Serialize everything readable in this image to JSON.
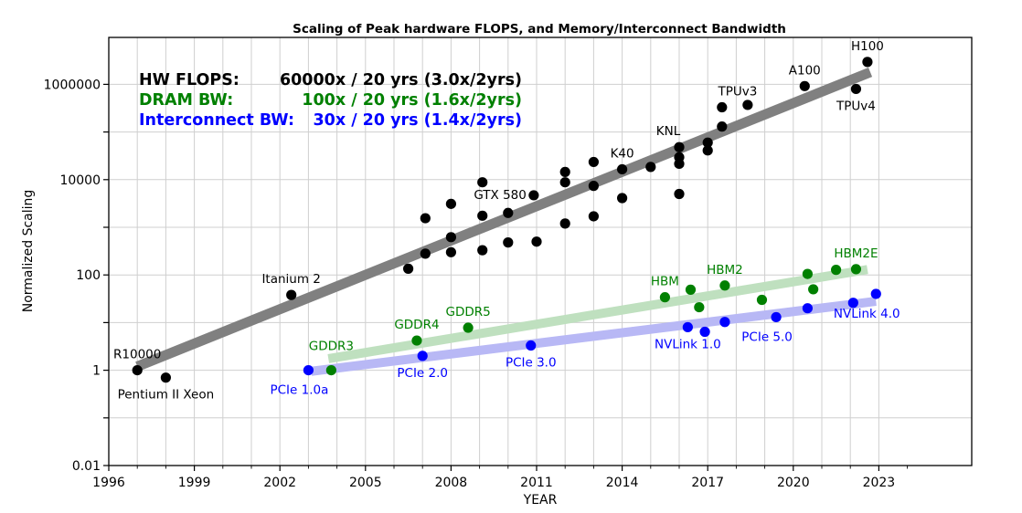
{
  "chart_data": {
    "type": "scatter",
    "title": "Scaling of Peak hardware FLOPS, and Memory/Interconnect Bandwidth",
    "xlabel": "YEAR",
    "ylabel": "Normalized Scaling",
    "yscale": "log",
    "xlim": [
      1996,
      2024
    ],
    "ylim": [
      0.01,
      10000000
    ],
    "x_ticks": [
      1996,
      1999,
      2002,
      2005,
      2008,
      2011,
      2014,
      2017,
      2020,
      2023
    ],
    "y_ticks": [
      {
        "value": 0.01,
        "label": "0.01"
      },
      {
        "value": 1,
        "label": "1"
      },
      {
        "value": 100,
        "label": "100"
      },
      {
        "value": 10000,
        "label": "10000"
      },
      {
        "value": 1000000,
        "label": "1000000"
      }
    ],
    "grid": true,
    "summary": [
      {
        "name": "HW FLOPS:",
        "value": "60000x / 20 yrs (3.0x/2yrs)",
        "color": "#000000"
      },
      {
        "name": "DRAM BW:",
        "value": "100x / 20 yrs (1.6x/2yrs)",
        "color": "#008000"
      },
      {
        "name": "Interconnect BW:",
        "value": "30x / 20 yrs (1.4x/2yrs)",
        "color": "#0000ff"
      }
    ],
    "series": [
      {
        "key": "flops",
        "color": "#000000",
        "trend_color": "#808080",
        "trend": [
          [
            1997,
            1.2
          ],
          [
            2022.7,
            1800000
          ]
        ],
        "points": [
          [
            1997,
            1
          ],
          [
            1998,
            0.7
          ],
          [
            2002.4,
            38
          ],
          [
            2006.5,
            135
          ],
          [
            2007.1,
            280
          ],
          [
            2007.1,
            1550
          ],
          [
            2008,
            300
          ],
          [
            2008,
            620
          ],
          [
            2008,
            3100
          ],
          [
            2009.1,
            330
          ],
          [
            2009.1,
            1750
          ],
          [
            2009.1,
            8800
          ],
          [
            2010,
            480
          ],
          [
            2010,
            2000
          ],
          [
            2010.9,
            4700
          ],
          [
            2011,
            500
          ],
          [
            2012,
            1200
          ],
          [
            2012,
            8800
          ],
          [
            2012,
            14500
          ],
          [
            2013,
            1700
          ],
          [
            2013,
            7400
          ],
          [
            2013,
            23500
          ],
          [
            2014,
            4100
          ],
          [
            2014,
            16500
          ],
          [
            2015,
            18500
          ],
          [
            2016,
            5000
          ],
          [
            2016,
            21500
          ],
          [
            2016,
            29500
          ],
          [
            2016,
            48000
          ],
          [
            2017,
            41000
          ],
          [
            2017,
            60000
          ],
          [
            2017.5,
            130000
          ],
          [
            2017.5,
            330000
          ],
          [
            2018.4,
            370000
          ],
          [
            2020.4,
            920000
          ],
          [
            2022.2,
            800000
          ],
          [
            2022.6,
            2950000
          ]
        ]
      },
      {
        "key": "dram",
        "color": "#008000",
        "trend_color": "#bfe0bf",
        "trend": [
          [
            2003.7,
            1.75
          ],
          [
            2022.6,
            130
          ]
        ],
        "points": [
          [
            2003.8,
            1
          ],
          [
            2006.8,
            4.2
          ],
          [
            2008.6,
            7.8
          ],
          [
            2015.5,
            34
          ],
          [
            2016.4,
            49
          ],
          [
            2016.7,
            21
          ],
          [
            2017.6,
            60
          ],
          [
            2018.9,
            30
          ],
          [
            2020.5,
            105
          ],
          [
            2020.7,
            50
          ],
          [
            2021.5,
            128
          ],
          [
            2022.2,
            132
          ]
        ]
      },
      {
        "key": "interconnect",
        "color": "#0000ff",
        "trend_color": "#b8b8f5",
        "trend": [
          [
            2003.1,
            0.95
          ],
          [
            2022.9,
            28
          ]
        ],
        "points": [
          [
            2003,
            1
          ],
          [
            2007,
            2
          ],
          [
            2010.8,
            3.3
          ],
          [
            2016.3,
            8
          ],
          [
            2016.9,
            6.4
          ],
          [
            2017.6,
            10.3
          ],
          [
            2019.4,
            13
          ],
          [
            2020.5,
            20
          ],
          [
            2022.1,
            26
          ],
          [
            2022.9,
            40
          ]
        ]
      }
    ],
    "annotations": [
      {
        "text": "R10000",
        "x": 1997,
        "y": 1,
        "color": "#000000",
        "pos": "above"
      },
      {
        "text": "Pentium II Xeon",
        "x": 1998,
        "y": 0.7,
        "color": "#000000",
        "pos": "below"
      },
      {
        "text": "Itanium 2",
        "x": 2002.4,
        "y": 38,
        "color": "#000000",
        "pos": "above"
      },
      {
        "text": "GTX 580",
        "x": 2010.9,
        "y": 4700,
        "color": "#000000",
        "pos": "left"
      },
      {
        "text": "K40",
        "x": 2014,
        "y": 16500,
        "color": "#000000",
        "pos": "above"
      },
      {
        "text": "KNL",
        "x": 2016,
        "y": 48000,
        "color": "#000000",
        "pos": "aboveleft"
      },
      {
        "text": "TPUv3",
        "x": 2017.6,
        "y": 330000,
        "color": "#000000",
        "pos": "aboveright"
      },
      {
        "text": "A100",
        "x": 2020.4,
        "y": 920000,
        "color": "#000000",
        "pos": "above"
      },
      {
        "text": "H100",
        "x": 2022.6,
        "y": 2950000,
        "color": "#000000",
        "pos": "above"
      },
      {
        "text": "TPUv4",
        "x": 2022.2,
        "y": 800000,
        "color": "#000000",
        "pos": "below"
      },
      {
        "text": "GDDR3",
        "x": 2003.8,
        "y": 1,
        "color": "#008000",
        "pos": "high"
      },
      {
        "text": "GDDR4",
        "x": 2006.8,
        "y": 4.2,
        "color": "#008000",
        "pos": "above"
      },
      {
        "text": "GDDR5",
        "x": 2008.6,
        "y": 7.8,
        "color": "#008000",
        "pos": "above"
      },
      {
        "text": "HBM",
        "x": 2015.5,
        "y": 34,
        "color": "#008000",
        "pos": "above"
      },
      {
        "text": "HBM2",
        "x": 2017.6,
        "y": 60,
        "color": "#008000",
        "pos": "above"
      },
      {
        "text": "HBM2E",
        "x": 2022.2,
        "y": 132,
        "color": "#008000",
        "pos": "above"
      },
      {
        "text": "PCIe 1.0a",
        "x": 2003,
        "y": 1,
        "color": "#0000ff",
        "pos": "belowleft"
      },
      {
        "text": "PCIe 2.0",
        "x": 2007,
        "y": 2,
        "color": "#0000ff",
        "pos": "below"
      },
      {
        "text": "PCIe 3.0",
        "x": 2010.8,
        "y": 3.3,
        "color": "#0000ff",
        "pos": "below"
      },
      {
        "text": "NVLink 1.0",
        "x": 2016.3,
        "y": 8,
        "color": "#0000ff",
        "pos": "below"
      },
      {
        "text": "PCIe 5.0",
        "x": 2019.4,
        "y": 13,
        "color": "#0000ff",
        "pos": "belowleft"
      },
      {
        "text": "NVLink 4.0",
        "x": 2022.9,
        "y": 40,
        "color": "#0000ff",
        "pos": "belowleft"
      }
    ]
  }
}
